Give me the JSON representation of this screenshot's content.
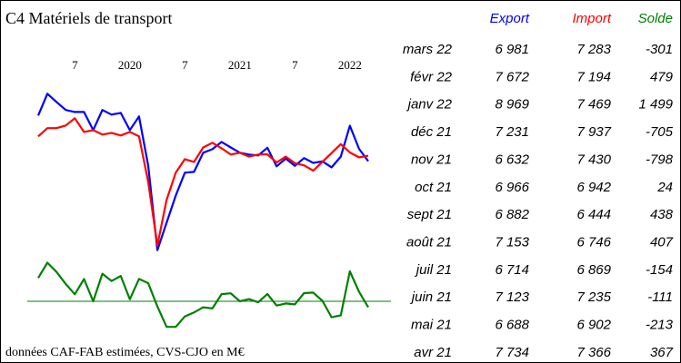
{
  "chart_data": {
    "type": "line",
    "title": "C4  Matériels de transport",
    "note": "données CAF-FAB estimées, CVS-CJO en M€",
    "categories": [
      null,
      null,
      null,
      null,
      "7",
      null,
      null,
      null,
      null,
      null,
      "2020",
      null,
      null,
      null,
      null,
      null,
      "7",
      null,
      null,
      null,
      null,
      null,
      "2021",
      null,
      null,
      null,
      null,
      null,
      "7",
      null,
      null,
      null,
      null,
      null,
      "2022",
      null,
      null
    ],
    "ylim": [
      1000,
      12000
    ],
    "y2lim": [
      -2000,
      2000
    ],
    "series": [
      {
        "name": "Export",
        "color": "#0000ff",
        "values": [
          9540,
          10760,
          10300,
          9850,
          9740,
          9740,
          8720,
          9850,
          9590,
          9690,
          8720,
          9490,
          6730,
          1990,
          3520,
          5050,
          6330,
          6380,
          7450,
          7650,
          8060,
          7750,
          7450,
          7350,
          7300,
          7734,
          6688,
          7123,
          6714,
          7153,
          6882,
          6966,
          6632,
          7231,
          8969,
          7672,
          6981
        ]
      },
      {
        "name": "Import",
        "color": "#ff0000",
        "values": [
          8370,
          8830,
          8830,
          8980,
          9390,
          8620,
          8720,
          8470,
          8570,
          8420,
          8620,
          8370,
          5820,
          2250,
          4800,
          6330,
          7090,
          6940,
          7750,
          8010,
          7700,
          7350,
          7450,
          7240,
          7350,
          7366,
          6902,
          7235,
          6869,
          6746,
          6444,
          6942,
          7430,
          7937,
          7469,
          7194,
          7283
        ]
      },
      {
        "name": "Solde",
        "color": "#008000",
        "axis": "y2",
        "values": [
          1170,
          1930,
          1470,
          870,
          350,
          1120,
          0,
          1380,
          1020,
          1270,
          100,
          1120,
          910,
          -260,
          -1280,
          -1280,
          -760,
          -560,
          -300,
          -360,
          360,
          400,
          0,
          110,
          -50,
          367,
          -213,
          -111,
          -154,
          407,
          438,
          24,
          -798,
          -705,
          1499,
          479,
          -301
        ]
      }
    ],
    "table": {
      "rows": [
        [
          "mars 22",
          "6 981",
          "7 283",
          "-301"
        ],
        [
          "févr 22",
          "7 672",
          "7 194",
          "479"
        ],
        [
          "janv 22",
          "8 969",
          "7 469",
          "1 499"
        ],
        [
          "déc 21",
          "7 231",
          "7 937",
          "-705"
        ],
        [
          "nov 21",
          "6 632",
          "7 430",
          "-798"
        ],
        [
          "oct 21",
          "6 966",
          "6 942",
          "24"
        ],
        [
          "sept 21",
          "6 882",
          "6 444",
          "438"
        ],
        [
          "août 21",
          "7 153",
          "6 746",
          "407"
        ],
        [
          "juil 21",
          "6 714",
          "6 869",
          "-154"
        ],
        [
          "juin 21",
          "7 123",
          "7 235",
          "-111"
        ],
        [
          "mai 21",
          "6 688",
          "6 902",
          "-213"
        ],
        [
          "avr 21",
          "7 734",
          "7 366",
          "367"
        ]
      ]
    }
  }
}
